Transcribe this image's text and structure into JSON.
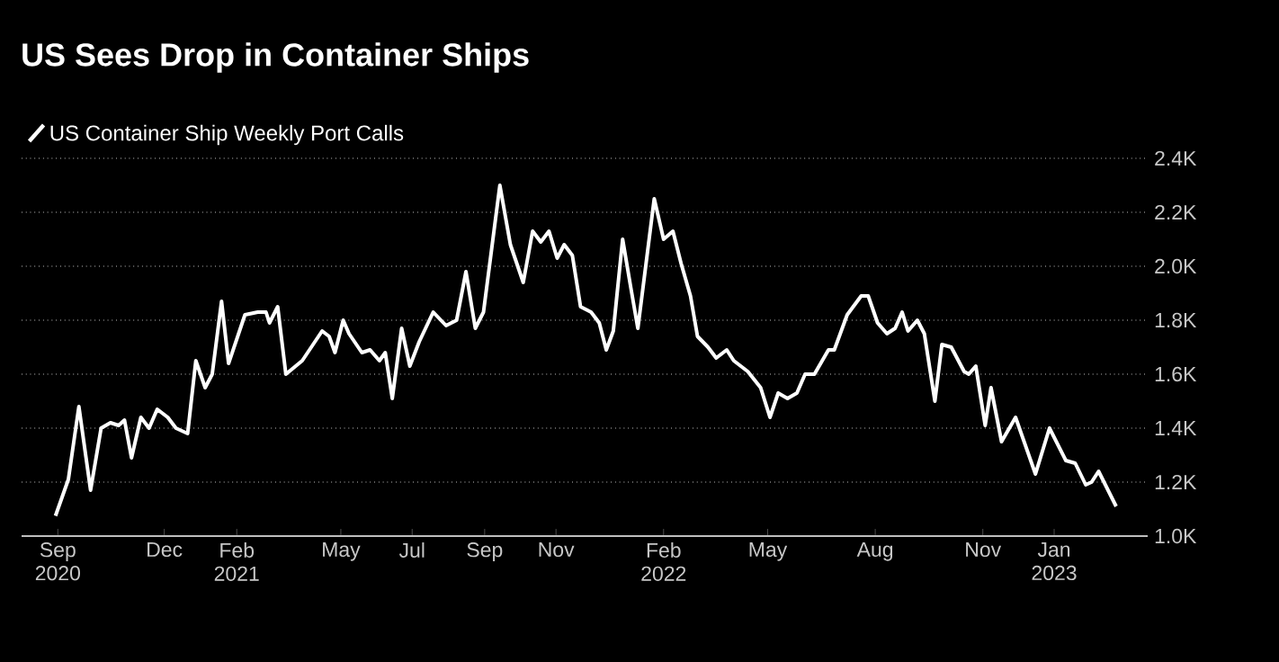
{
  "chart_data": {
    "type": "line",
    "title": "US Sees Drop in Container Ships",
    "x": [
      "2020-08-30",
      "2020-09-10",
      "2020-09-19",
      "2020-09-29",
      "2020-10-08",
      "2020-10-16",
      "2020-10-23",
      "2020-10-28",
      "2020-11-03",
      "2020-11-11",
      "2020-11-18",
      "2020-11-25",
      "2020-12-04",
      "2020-12-11",
      "2020-12-21",
      "2020-12-28",
      "2021-01-05",
      "2021-01-11",
      "2021-01-19",
      "2021-01-25",
      "2021-02-08",
      "2021-02-19",
      "2021-02-26",
      "2021-03-01",
      "2021-03-08",
      "2021-03-15",
      "2021-03-29",
      "2021-04-15",
      "2021-04-21",
      "2021-04-26",
      "2021-05-03",
      "2021-05-08",
      "2021-05-19",
      "2021-05-26",
      "2021-06-03",
      "2021-06-08",
      "2021-06-14",
      "2021-06-22",
      "2021-06-29",
      "2021-07-07",
      "2021-07-19",
      "2021-07-30",
      "2021-08-08",
      "2021-08-16",
      "2021-08-24",
      "2021-08-31",
      "2021-09-14",
      "2021-09-23",
      "2021-10-04",
      "2021-10-12",
      "2021-10-19",
      "2021-10-26",
      "2021-11-02",
      "2021-11-08",
      "2021-11-15",
      "2021-11-22",
      "2021-12-01",
      "2021-12-08",
      "2021-12-14",
      "2021-12-20",
      "2021-12-28",
      "2022-01-04",
      "2022-01-10",
      "2022-01-24",
      "2022-02-01",
      "2022-02-09",
      "2022-02-16",
      "2022-02-24",
      "2022-03-02",
      "2022-03-11",
      "2022-03-18",
      "2022-03-27",
      "2022-04-02",
      "2022-04-14",
      "2022-04-25",
      "2022-05-03",
      "2022-05-10",
      "2022-05-18",
      "2022-05-26",
      "2022-06-02",
      "2022-06-10",
      "2022-06-22",
      "2022-06-27",
      "2022-07-08",
      "2022-07-20",
      "2022-07-26",
      "2022-08-03",
      "2022-08-11",
      "2022-08-18",
      "2022-08-24",
      "2022-08-29",
      "2022-09-06",
      "2022-09-12",
      "2022-09-21",
      "2022-09-27",
      "2022-10-05",
      "2022-10-16",
      "2022-10-20",
      "2022-10-26",
      "2022-11-03",
      "2022-11-08",
      "2022-11-17",
      "2022-11-29",
      "2022-12-16",
      "2022-12-28",
      "2023-01-11",
      "2023-01-19",
      "2023-01-28",
      "2023-02-02",
      "2023-02-08",
      "2023-02-23"
    ],
    "series": [
      {
        "name": "US Container Ship Weekly Port Calls",
        "color": "#ffffff",
        "values": [
          1075,
          1210,
          1480,
          1170,
          1400,
          1420,
          1410,
          1430,
          1290,
          1440,
          1400,
          1470,
          1440,
          1400,
          1380,
          1650,
          1550,
          1600,
          1870,
          1640,
          1820,
          1830,
          1830,
          1790,
          1850,
          1600,
          1650,
          1760,
          1740,
          1680,
          1800,
          1750,
          1680,
          1690,
          1650,
          1680,
          1510,
          1770,
          1630,
          1720,
          1830,
          1780,
          1800,
          1980,
          1770,
          1830,
          2300,
          2080,
          1940,
          2130,
          2090,
          2130,
          2030,
          2080,
          2040,
          1850,
          1830,
          1790,
          1690,
          1760,
          2100,
          1920,
          1770,
          2250,
          2100,
          2130,
          2010,
          1890,
          1740,
          1700,
          1660,
          1690,
          1650,
          1610,
          1550,
          1440,
          1530,
          1510,
          1530,
          1600,
          1600,
          1690,
          1690,
          1820,
          1890,
          1890,
          1790,
          1750,
          1770,
          1830,
          1760,
          1800,
          1750,
          1500,
          1710,
          1700,
          1610,
          1600,
          1630,
          1410,
          1550,
          1350,
          1440,
          1230,
          1400,
          1280,
          1270,
          1190,
          1200,
          1240,
          1110
        ]
      }
    ],
    "xlim": [
      "2020-08-01",
      "2023-03-22"
    ],
    "xticks": [
      {
        "value": "2020-09-01",
        "label": "Sep 2020"
      },
      {
        "value": "2020-12-01",
        "label": "Dec"
      },
      {
        "value": "2021-02-01",
        "label": "Feb 2021"
      },
      {
        "value": "2021-05-01",
        "label": "May"
      },
      {
        "value": "2021-07-01",
        "label": "Jul"
      },
      {
        "value": "2021-09-01",
        "label": "Sep"
      },
      {
        "value": "2021-11-01",
        "label": "Nov"
      },
      {
        "value": "2022-02-01",
        "label": "Feb 2022"
      },
      {
        "value": "2022-05-01",
        "label": "May"
      },
      {
        "value": "2022-08-01",
        "label": "Aug"
      },
      {
        "value": "2022-11-01",
        "label": "Nov"
      },
      {
        "value": "2023-01-01",
        "label": "Jan 2023"
      }
    ],
    "ylim": [
      1000,
      2400
    ],
    "yticks": [
      {
        "value": 1000,
        "label": "1.0K"
      },
      {
        "value": 1200,
        "label": "1.2K"
      },
      {
        "value": 1400,
        "label": "1.4K"
      },
      {
        "value": 1600,
        "label": "1.6K"
      },
      {
        "value": 1800,
        "label": "1.8K"
      },
      {
        "value": 2000,
        "label": "2.0K"
      },
      {
        "value": 2200,
        "label": "2.2K"
      },
      {
        "value": 2400,
        "label": "2.4K"
      }
    ],
    "grid": "y",
    "legend": "top left",
    "marker": "none",
    "line_style": "solid"
  }
}
